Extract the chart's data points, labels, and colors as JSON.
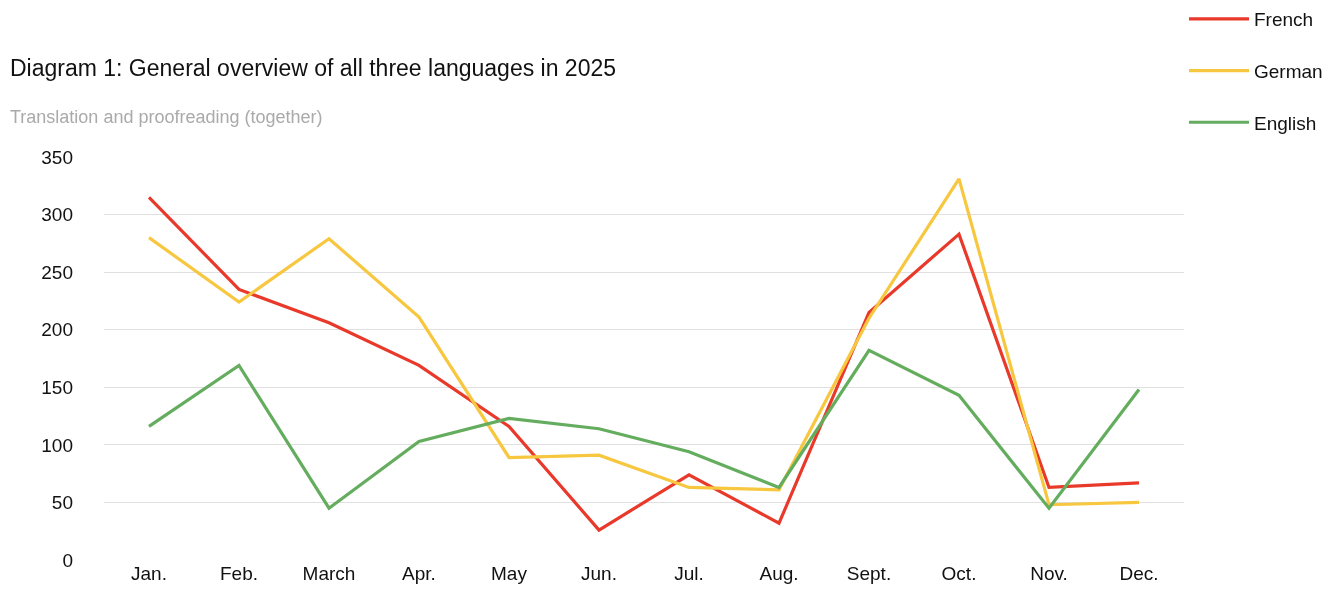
{
  "chart_data": {
    "type": "line",
    "title": "Diagram 1: General overview of all three languages in 2025",
    "subtitle": "Translation and proofreading (together)",
    "categories": [
      "Jan.",
      "Feb.",
      "March",
      "Apr.",
      "May",
      "Jun.",
      "Jul.",
      "Aug.",
      "Sept.",
      "Oct.",
      "Nov.",
      "Dec."
    ],
    "series": [
      {
        "name": "French",
        "color": "#e8392a",
        "values": [
          315,
          235,
          206,
          169,
          116,
          26,
          74,
          32,
          215,
          283,
          63,
          67
        ]
      },
      {
        "name": "German",
        "color": "#f7c740",
        "values": [
          280,
          224,
          279,
          211,
          89,
          91,
          63,
          61,
          210,
          331,
          48,
          50
        ]
      },
      {
        "name": "English",
        "color": "#65ad5e",
        "values": [
          116,
          169,
          45,
          103,
          123,
          114,
          94,
          63,
          182,
          143,
          45,
          148
        ]
      }
    ],
    "ylim": [
      0,
      350
    ],
    "yticks": [
      0,
      50,
      100,
      150,
      200,
      250,
      300,
      350
    ],
    "grid": "y",
    "legend": "top right",
    "marker": "none",
    "line_style": "solid"
  }
}
